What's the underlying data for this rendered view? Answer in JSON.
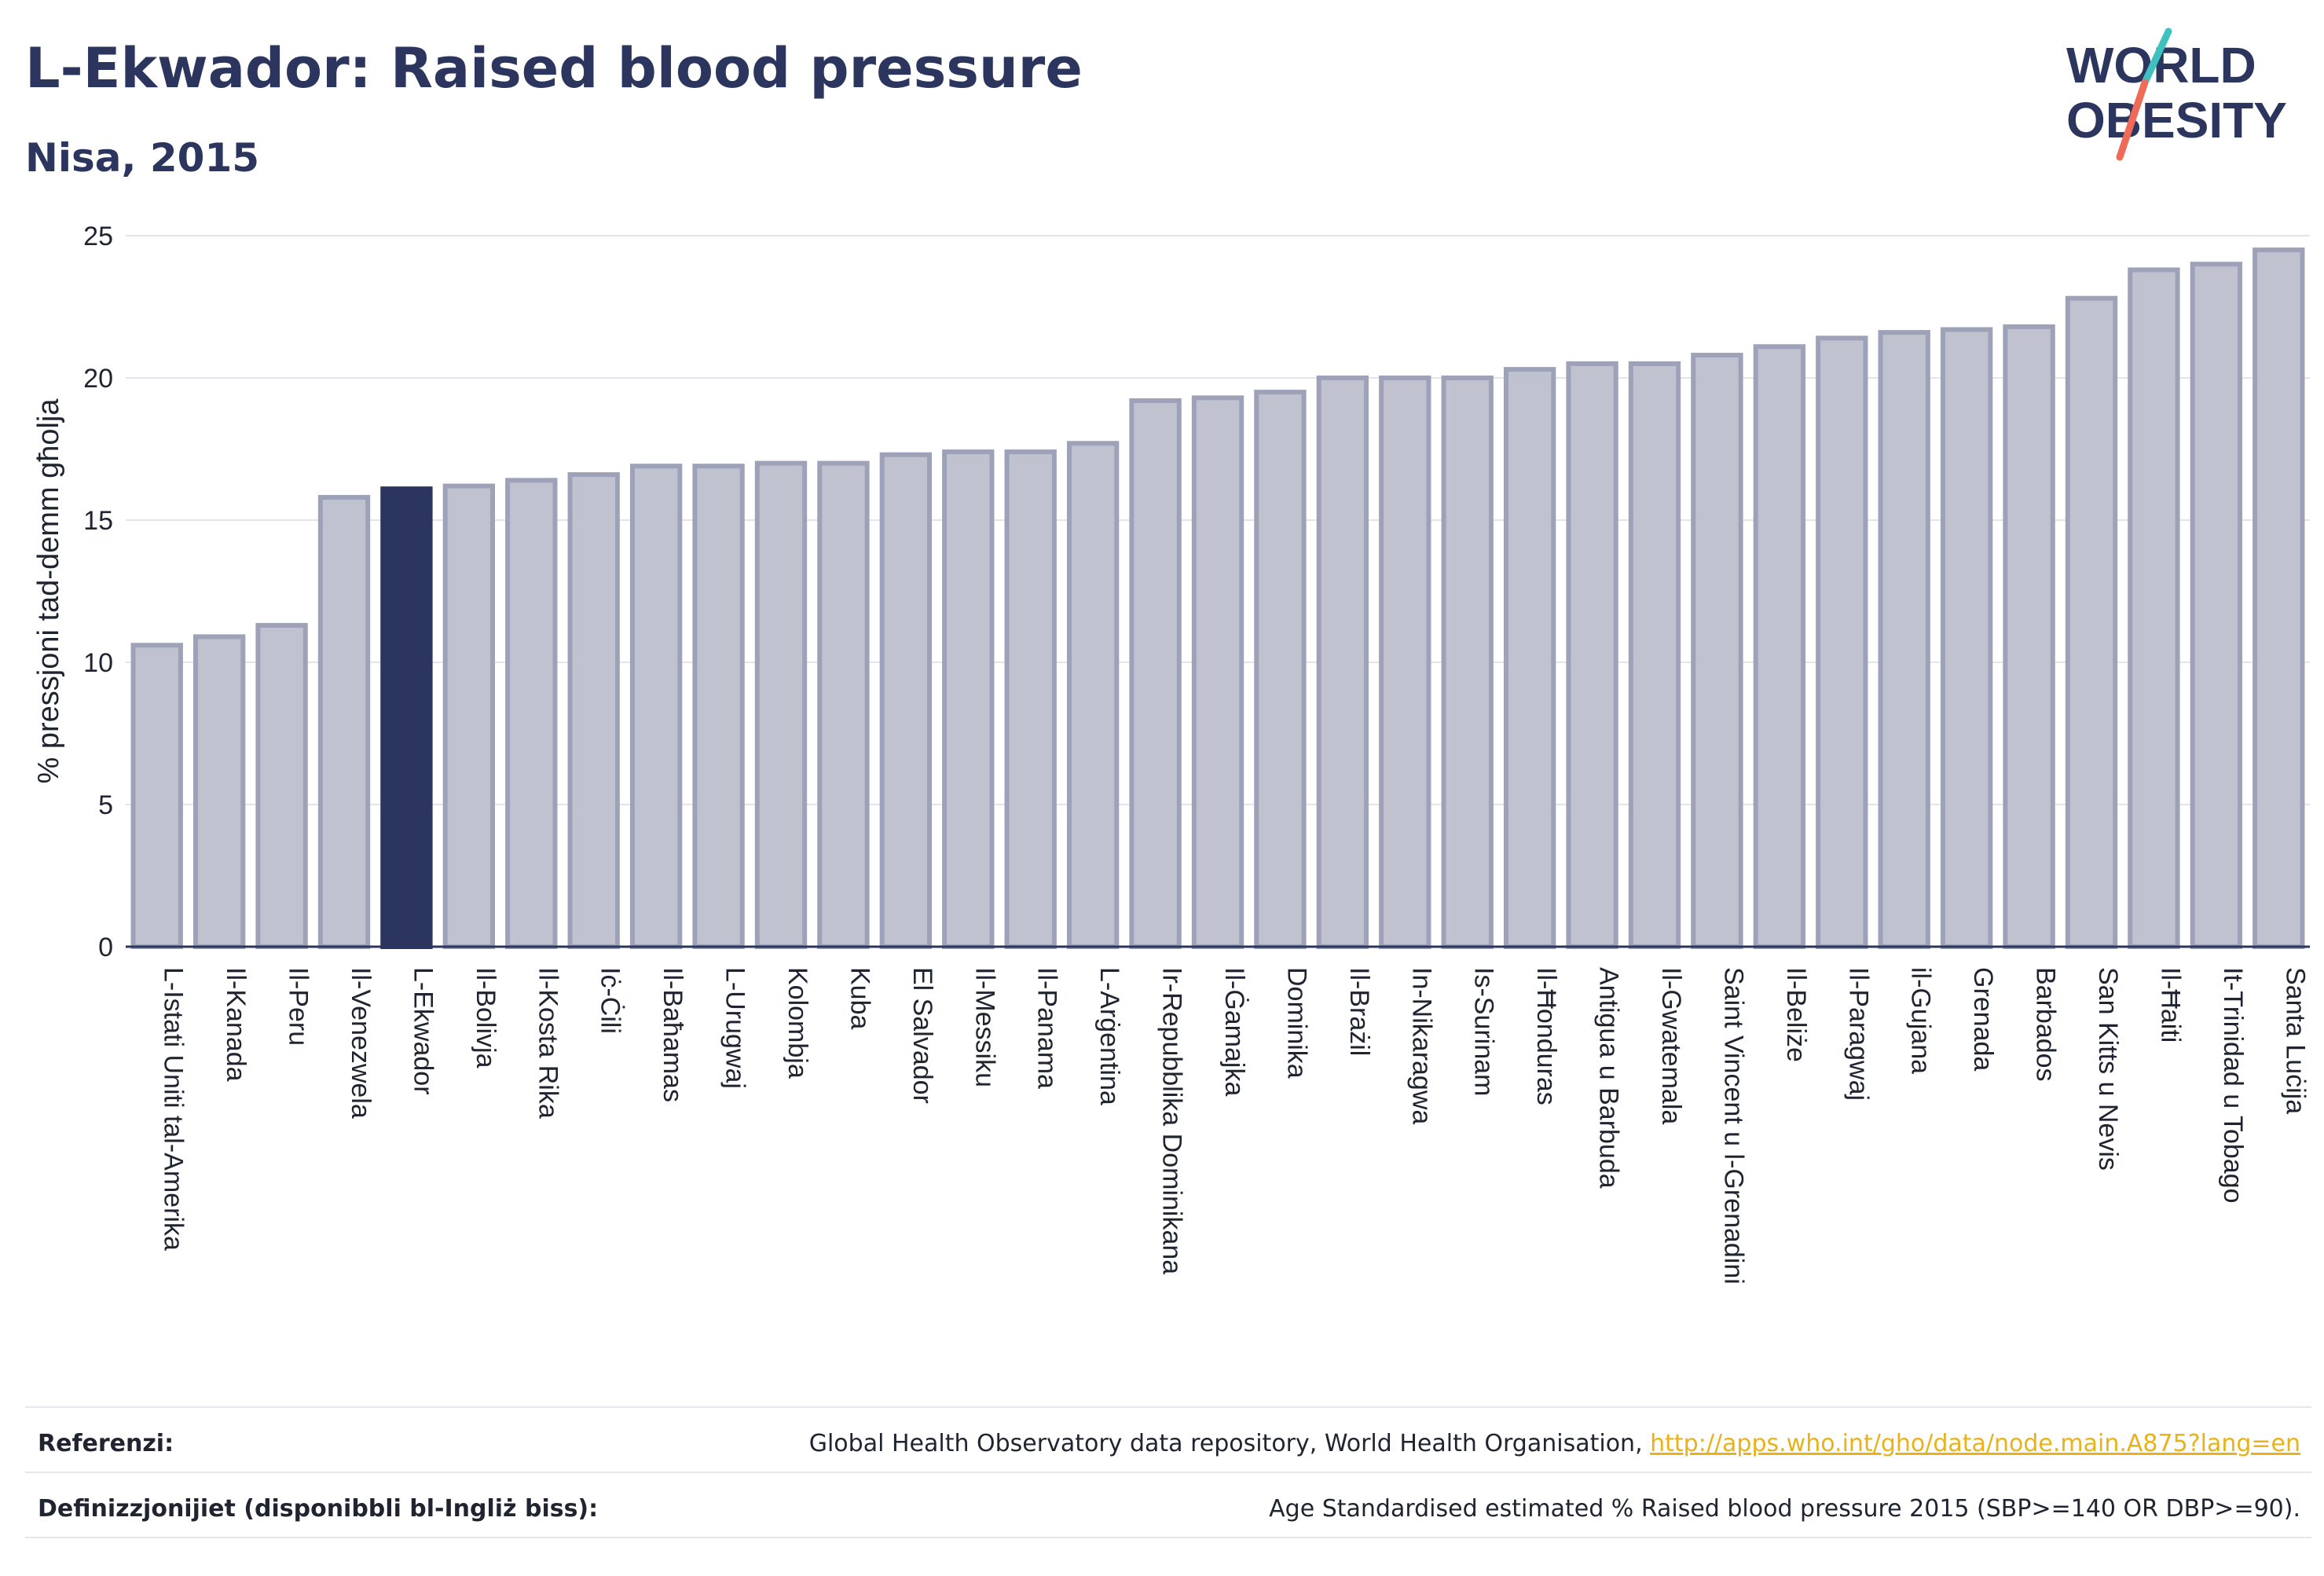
{
  "header": {
    "title": "L-Ekwador: Raised blood pressure",
    "subtitle": "Nisa, 2015"
  },
  "logo": {
    "line1": "WORLD",
    "line2": "OBESITY",
    "color": "#2b355e",
    "slash_colors": [
      "#3fc1c0",
      "#ef6b57"
    ]
  },
  "chart_data": {
    "type": "bar",
    "title": "L-Ekwador: Raised blood pressure",
    "subtitle": "Nisa, 2015",
    "ylabel": "% pressjoni tad-demm għolja",
    "xlabel": "",
    "ylim": [
      0,
      25
    ],
    "yticks": [
      0,
      5,
      10,
      15,
      20,
      25
    ],
    "grid": true,
    "highlight": "L-Ekwador",
    "colors": {
      "bar": "#c0c3cf",
      "bar_border": "#9ea2b8",
      "highlight": "#2b355e"
    },
    "categories": [
      "L-Istati Uniti tal-Amerika",
      "Il-Kanada",
      "Il-Peru",
      "Il-Venezwela",
      "L-Ekwador",
      "Il-Bolivja",
      "Il-Kosta Rika",
      "Iċ-Ċili",
      "Il-Baħamas",
      "L-Urugwaj",
      "Kolombja",
      "Kuba",
      "El Salvador",
      "Il-Messiku",
      "Il-Panama",
      "L-Arġentina",
      "Ir-Repubblika Dominikana",
      "Il-Ġamajka",
      "Dominika",
      "Il-Brażil",
      "In-Nikaragwa",
      "Is-Surinam",
      "Il-Ħonduras",
      "Antigua u Barbuda",
      "Il-Gwatemala",
      "Saint Vincent u l-Grenadini",
      "Il-Beliże",
      "Il-Paragwaj",
      "il-Gujana",
      "Grenada",
      "Barbados",
      "San Kitts u Nevis",
      "Il-Ħaiti",
      "It-Trinidad u Tobago",
      "Santa Luċija"
    ],
    "values": [
      10.6,
      10.9,
      11.3,
      15.8,
      16.1,
      16.2,
      16.4,
      16.6,
      16.9,
      16.9,
      17.0,
      17.0,
      17.3,
      17.4,
      17.4,
      17.7,
      19.2,
      19.3,
      19.5,
      20.0,
      20.0,
      20.0,
      20.3,
      20.5,
      20.5,
      20.8,
      21.1,
      21.4,
      21.6,
      21.7,
      21.8,
      22.8,
      23.8,
      24.0,
      24.5
    ]
  },
  "footer": {
    "ref_label": "Referenzi:",
    "ref_text": "Global Health Observatory data repository, World Health Organisation, ",
    "ref_link": "http://apps.who.int/gho/data/node.main.A875?lang=en",
    "def_label": "Definizzjonijiet (disponibbli bl-Ingliż biss):",
    "def_text": "Age Standardised estimated % Raised blood pressure 2015 (SBP>=140 OR DBP>=90)."
  }
}
